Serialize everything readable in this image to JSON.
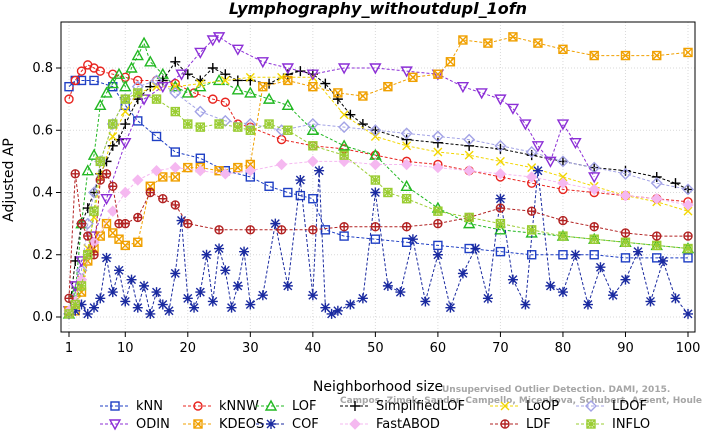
{
  "chart_data": {
    "type": "line",
    "title": "Lymphography_withoutdupl_1ofn",
    "xlabel": "Neighborhood size",
    "ylabel": "Adjusted AP",
    "xlim": [
      1,
      100
    ],
    "ylim": [
      -0.02,
      0.93
    ],
    "x_ticks": [
      "1",
      "10",
      "20",
      "30",
      "40",
      "50",
      "60",
      "70",
      "80",
      "90",
      "100"
    ],
    "y_ticks": [
      "0.0",
      "0.2",
      "0.4",
      "0.6",
      "0.8"
    ],
    "grid": true,
    "legend_position": "bottom",
    "credit_lines": [
      "Unsupervised Outlier Detection. DAMI, 2015.",
      "Campos, Zimek, Sander, Campello, Micenkova, Schubert, Assent, Houle"
    ],
    "series": [
      {
        "name": "kNN",
        "color": "#1f3fc4",
        "marker": "square",
        "x": [
          1,
          2,
          3,
          5,
          8,
          10,
          12,
          15,
          18,
          22,
          26,
          30,
          33,
          36,
          38,
          40,
          42,
          45,
          50,
          55,
          60,
          65,
          70,
          75,
          80,
          85,
          90,
          95,
          100
        ],
        "y": [
          0.74,
          0.76,
          0.76,
          0.76,
          0.74,
          0.68,
          0.63,
          0.58,
          0.53,
          0.51,
          0.47,
          0.45,
          0.42,
          0.4,
          0.39,
          0.38,
          0.28,
          0.26,
          0.25,
          0.24,
          0.23,
          0.22,
          0.21,
          0.2,
          0.2,
          0.2,
          0.19,
          0.19,
          0.19
        ]
      },
      {
        "name": "kNNW",
        "color": "#e8241f",
        "marker": "circle",
        "x": [
          1,
          2,
          3,
          4,
          5,
          6,
          8,
          10,
          12,
          15,
          18,
          21,
          24,
          26,
          28,
          30,
          35,
          40,
          45,
          50,
          55,
          60,
          65,
          70,
          75,
          80,
          85,
          90,
          95,
          100
        ],
        "y": [
          0.7,
          0.76,
          0.79,
          0.81,
          0.8,
          0.79,
          0.78,
          0.77,
          0.76,
          0.76,
          0.75,
          0.72,
          0.7,
          0.69,
          0.62,
          0.61,
          0.57,
          0.55,
          0.54,
          0.52,
          0.5,
          0.49,
          0.47,
          0.45,
          0.43,
          0.41,
          0.4,
          0.39,
          0.38,
          0.37
        ]
      },
      {
        "name": "LOF",
        "color": "#22b822",
        "marker": "triangle-up",
        "x": [
          1,
          2,
          3,
          4,
          5,
          6,
          7,
          8,
          9,
          10,
          11,
          12,
          13,
          14,
          16,
          18,
          20,
          22,
          25,
          28,
          30,
          33,
          36,
          40,
          45,
          50,
          55,
          60,
          65,
          70,
          75,
          80,
          85,
          90,
          95,
          100
        ],
        "y": [
          0.01,
          0.08,
          0.3,
          0.47,
          0.52,
          0.68,
          0.72,
          0.75,
          0.78,
          0.74,
          0.8,
          0.84,
          0.88,
          0.82,
          0.78,
          0.74,
          0.72,
          0.74,
          0.76,
          0.73,
          0.72,
          0.7,
          0.68,
          0.6,
          0.55,
          0.52,
          0.42,
          0.35,
          0.3,
          0.28,
          0.27,
          0.26,
          0.25,
          0.24,
          0.23,
          0.22
        ]
      },
      {
        "name": "SimplifiedLOF",
        "color": "#000000",
        "marker": "plus",
        "x": [
          1,
          2,
          3,
          4,
          5,
          6,
          7,
          8,
          9,
          10,
          12,
          14,
          16,
          18,
          20,
          22,
          24,
          26,
          28,
          30,
          33,
          36,
          38,
          40,
          42,
          44,
          46,
          48,
          50,
          55,
          60,
          65,
          70,
          75,
          80,
          85,
          90,
          95,
          98,
          100
        ],
        "y": [
          0.01,
          0.18,
          0.3,
          0.35,
          0.4,
          0.46,
          0.5,
          0.55,
          0.57,
          0.62,
          0.7,
          0.74,
          0.76,
          0.82,
          0.78,
          0.76,
          0.8,
          0.78,
          0.76,
          0.76,
          0.75,
          0.78,
          0.79,
          0.78,
          0.75,
          0.7,
          0.65,
          0.62,
          0.6,
          0.57,
          0.56,
          0.55,
          0.54,
          0.52,
          0.5,
          0.48,
          0.47,
          0.45,
          0.43,
          0.41
        ]
      },
      {
        "name": "LoOP",
        "color": "#f2d600",
        "marker": "cross",
        "x": [
          1,
          2,
          3,
          4,
          5,
          6,
          8,
          10,
          12,
          15,
          18,
          22,
          26,
          30,
          35,
          40,
          45,
          50,
          55,
          60,
          65,
          70,
          75,
          80,
          85,
          90,
          95,
          100
        ],
        "y": [
          0.01,
          0.05,
          0.12,
          0.22,
          0.32,
          0.45,
          0.58,
          0.66,
          0.72,
          0.74,
          0.74,
          0.75,
          0.76,
          0.77,
          0.77,
          0.77,
          0.65,
          0.58,
          0.55,
          0.53,
          0.52,
          0.5,
          0.48,
          0.45,
          0.42,
          0.39,
          0.37,
          0.34
        ]
      },
      {
        "name": "LDOF",
        "color": "#a3a3e6",
        "marker": "diamond",
        "x": [
          1,
          2,
          3,
          4,
          5,
          6,
          8,
          10,
          12,
          15,
          18,
          22,
          26,
          30,
          35,
          40,
          45,
          50,
          55,
          60,
          65,
          70,
          75,
          80,
          85,
          90,
          95,
          100
        ],
        "y": [
          0.01,
          0.05,
          0.15,
          0.3,
          0.4,
          0.5,
          0.62,
          0.7,
          0.74,
          0.76,
          0.72,
          0.66,
          0.63,
          0.62,
          0.6,
          0.62,
          0.61,
          0.6,
          0.59,
          0.58,
          0.57,
          0.55,
          0.53,
          0.5,
          0.48,
          0.46,
          0.43,
          0.41
        ]
      },
      {
        "name": "ODIN",
        "color": "#8c2fd6",
        "marker": "triangle-down",
        "x": [
          1,
          2,
          3,
          5,
          7,
          10,
          13,
          16,
          19,
          22,
          24,
          25,
          28,
          32,
          36,
          40,
          45,
          50,
          55,
          60,
          64,
          67,
          70,
          72,
          74,
          76,
          78,
          80,
          82,
          85
        ],
        "y": [
          0.02,
          0.1,
          0.18,
          0.26,
          0.38,
          0.56,
          0.7,
          0.74,
          0.78,
          0.85,
          0.89,
          0.9,
          0.86,
          0.82,
          0.8,
          0.78,
          0.8,
          0.8,
          0.79,
          0.78,
          0.74,
          0.72,
          0.7,
          0.67,
          0.62,
          0.55,
          0.5,
          0.62,
          0.56,
          0.45
        ]
      },
      {
        "name": "KDEOS",
        "color": "#f0a000",
        "marker": "square-x",
        "x": [
          1,
          2,
          3,
          4,
          5,
          6,
          7,
          8,
          9,
          10,
          12,
          14,
          16,
          18,
          20,
          22,
          25,
          28,
          30,
          32,
          36,
          40,
          44,
          48,
          52,
          56,
          60,
          62,
          64,
          68,
          72,
          76,
          80,
          85,
          90,
          95,
          100
        ],
        "y": [
          0.02,
          0.02,
          0.08,
          0.18,
          0.22,
          0.26,
          0.3,
          0.27,
          0.25,
          0.23,
          0.24,
          0.42,
          0.45,
          0.45,
          0.48,
          0.48,
          0.47,
          0.48,
          0.49,
          0.74,
          0.76,
          0.74,
          0.72,
          0.71,
          0.74,
          0.77,
          0.78,
          0.82,
          0.89,
          0.88,
          0.9,
          0.88,
          0.86,
          0.84,
          0.84,
          0.84,
          0.85
        ]
      },
      {
        "name": "COF",
        "color": "#1a2aa0",
        "marker": "asterisk",
        "x": [
          1,
          2,
          3,
          4,
          5,
          6,
          7,
          8,
          9,
          10,
          11,
          12,
          13,
          14,
          15,
          16,
          17,
          18,
          19,
          20,
          21,
          22,
          23,
          24,
          25,
          26,
          27,
          28,
          29,
          30,
          32,
          34,
          36,
          38,
          40,
          41,
          42,
          43,
          44,
          46,
          48,
          50,
          52,
          54,
          56,
          58,
          60,
          62,
          64,
          66,
          68,
          70,
          72,
          74,
          76,
          78,
          80,
          82,
          84,
          86,
          88,
          90,
          92,
          94,
          96,
          98,
          100
        ],
        "y": [
          0.01,
          0.02,
          0.04,
          0.01,
          0.03,
          0.06,
          0.19,
          0.08,
          0.15,
          0.05,
          0.12,
          0.03,
          0.1,
          0.01,
          0.08,
          0.04,
          0.02,
          0.14,
          0.31,
          0.06,
          0.03,
          0.08,
          0.2,
          0.05,
          0.22,
          0.15,
          0.03,
          0.1,
          0.21,
          0.04,
          0.07,
          0.3,
          0.1,
          0.44,
          0.07,
          0.47,
          0.03,
          0.01,
          0.02,
          0.04,
          0.06,
          0.4,
          0.1,
          0.08,
          0.25,
          0.05,
          0.2,
          0.03,
          0.14,
          0.22,
          0.06,
          0.38,
          0.12,
          0.04,
          0.47,
          0.1,
          0.08,
          0.2,
          0.04,
          0.16,
          0.07,
          0.12,
          0.21,
          0.05,
          0.18,
          0.06,
          0.01
        ]
      },
      {
        "name": "FastABOD",
        "color": "#f5b8f0",
        "marker": "diamond-filled",
        "x": [
          1,
          2,
          3,
          5,
          8,
          10,
          12,
          15,
          18,
          22,
          26,
          30,
          35,
          40,
          45,
          50,
          55,
          60,
          65,
          70,
          75,
          80,
          85,
          90,
          95,
          100
        ],
        "y": [
          0.02,
          0.05,
          0.12,
          0.24,
          0.34,
          0.4,
          0.44,
          0.47,
          0.48,
          0.47,
          0.46,
          0.47,
          0.49,
          0.5,
          0.5,
          0.49,
          0.49,
          0.48,
          0.47,
          0.46,
          0.45,
          0.43,
          0.41,
          0.39,
          0.38,
          0.36
        ]
      },
      {
        "name": "LDF",
        "color": "#b22222",
        "marker": "circle-plus",
        "x": [
          1,
          2,
          3,
          4,
          5,
          6,
          7,
          8,
          9,
          10,
          12,
          14,
          16,
          18,
          20,
          25,
          30,
          35,
          40,
          45,
          50,
          55,
          60,
          65,
          70,
          75,
          80,
          85,
          90,
          95,
          100
        ],
        "y": [
          0.06,
          0.46,
          0.3,
          0.26,
          0.2,
          0.44,
          0.46,
          0.42,
          0.3,
          0.3,
          0.32,
          0.4,
          0.38,
          0.36,
          0.3,
          0.28,
          0.28,
          0.28,
          0.28,
          0.29,
          0.29,
          0.29,
          0.3,
          0.32,
          0.35,
          0.34,
          0.31,
          0.29,
          0.27,
          0.26,
          0.26
        ]
      },
      {
        "name": "INFLO",
        "color": "#9acd32",
        "marker": "square-star",
        "x": [
          1,
          2,
          3,
          4,
          5,
          6,
          8,
          10,
          12,
          15,
          18,
          20,
          22,
          25,
          28,
          30,
          33,
          36,
          40,
          45,
          50,
          52,
          55,
          60,
          65,
          70,
          75,
          80,
          85,
          90,
          95,
          100
        ],
        "y": [
          0.01,
          0.04,
          0.1,
          0.2,
          0.34,
          0.5,
          0.62,
          0.7,
          0.72,
          0.7,
          0.66,
          0.62,
          0.61,
          0.62,
          0.61,
          0.6,
          0.62,
          0.6,
          0.55,
          0.52,
          0.44,
          0.4,
          0.38,
          0.34,
          0.32,
          0.3,
          0.28,
          0.26,
          0.25,
          0.24,
          0.23,
          0.22
        ]
      }
    ]
  }
}
